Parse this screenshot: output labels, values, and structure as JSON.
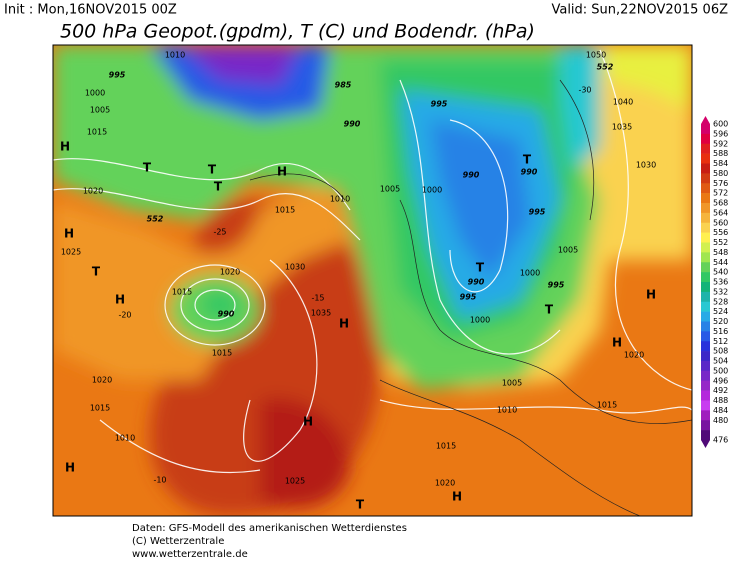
{
  "header": {
    "init": "Init : Mon,16NOV2015 00Z",
    "valid": "Valid: Sun,22NOV2015 06Z",
    "title": "500 hPa Geopot.(gpdm), T (C) und Bodendr. (hPa)"
  },
  "colorbar": {
    "levels": [
      600,
      596,
      592,
      588,
      584,
      580,
      576,
      572,
      568,
      564,
      560,
      556,
      552,
      548,
      544,
      540,
      536,
      532,
      528,
      524,
      520,
      516,
      512,
      508,
      504,
      500,
      496,
      492,
      488,
      484,
      480,
      476
    ],
    "colors": [
      "#d4006a",
      "#e00040",
      "#e02020",
      "#e83010",
      "#c81e14",
      "#d23c14",
      "#e05a14",
      "#ea7814",
      "#f09628",
      "#f5b43c",
      "#fad250",
      "#fff050",
      "#d2f050",
      "#a0e650",
      "#64d25a",
      "#32c864",
      "#14b478",
      "#1eb4aa",
      "#28c8d2",
      "#28aae6",
      "#2882e6",
      "#285ae6",
      "#2832dc",
      "#3c28c8",
      "#5a28c8",
      "#7828c8",
      "#9628c8",
      "#b428dc",
      "#c83cf0",
      "#a01ebe",
      "#7814a0",
      "#500a78"
    ]
  },
  "map_labels": [
    "1010",
    "995",
    "1000",
    "1005",
    "1015",
    "H",
    "T",
    "T",
    "T",
    "H",
    "1020",
    "H",
    "1025",
    "T",
    "H",
    "1015",
    "1020",
    "990",
    "1015",
    "1020",
    "1015",
    "1010",
    "H",
    "H",
    "1025",
    "T",
    "1030",
    "1035",
    "H",
    "1015",
    "1010",
    "1005",
    "1000",
    "995",
    "990",
    "T",
    "990",
    "995",
    "1005",
    "1000",
    "995",
    "990",
    "T",
    "995",
    "1000",
    "1005",
    "1010",
    "1015",
    "1015",
    "1020",
    "H",
    "1030",
    "1035",
    "1040",
    "1050",
    "H",
    "H",
    "1020",
    "T",
    "552",
    "552",
    "-30",
    "-25",
    "-15",
    "-10",
    "-20",
    "985",
    "990"
  ],
  "footer": [
    "Daten: GFS-Modell des amerikanischen Wetterdienstes",
    "(C) Wetterzentrale",
    "www.wetterzentrale.de"
  ]
}
